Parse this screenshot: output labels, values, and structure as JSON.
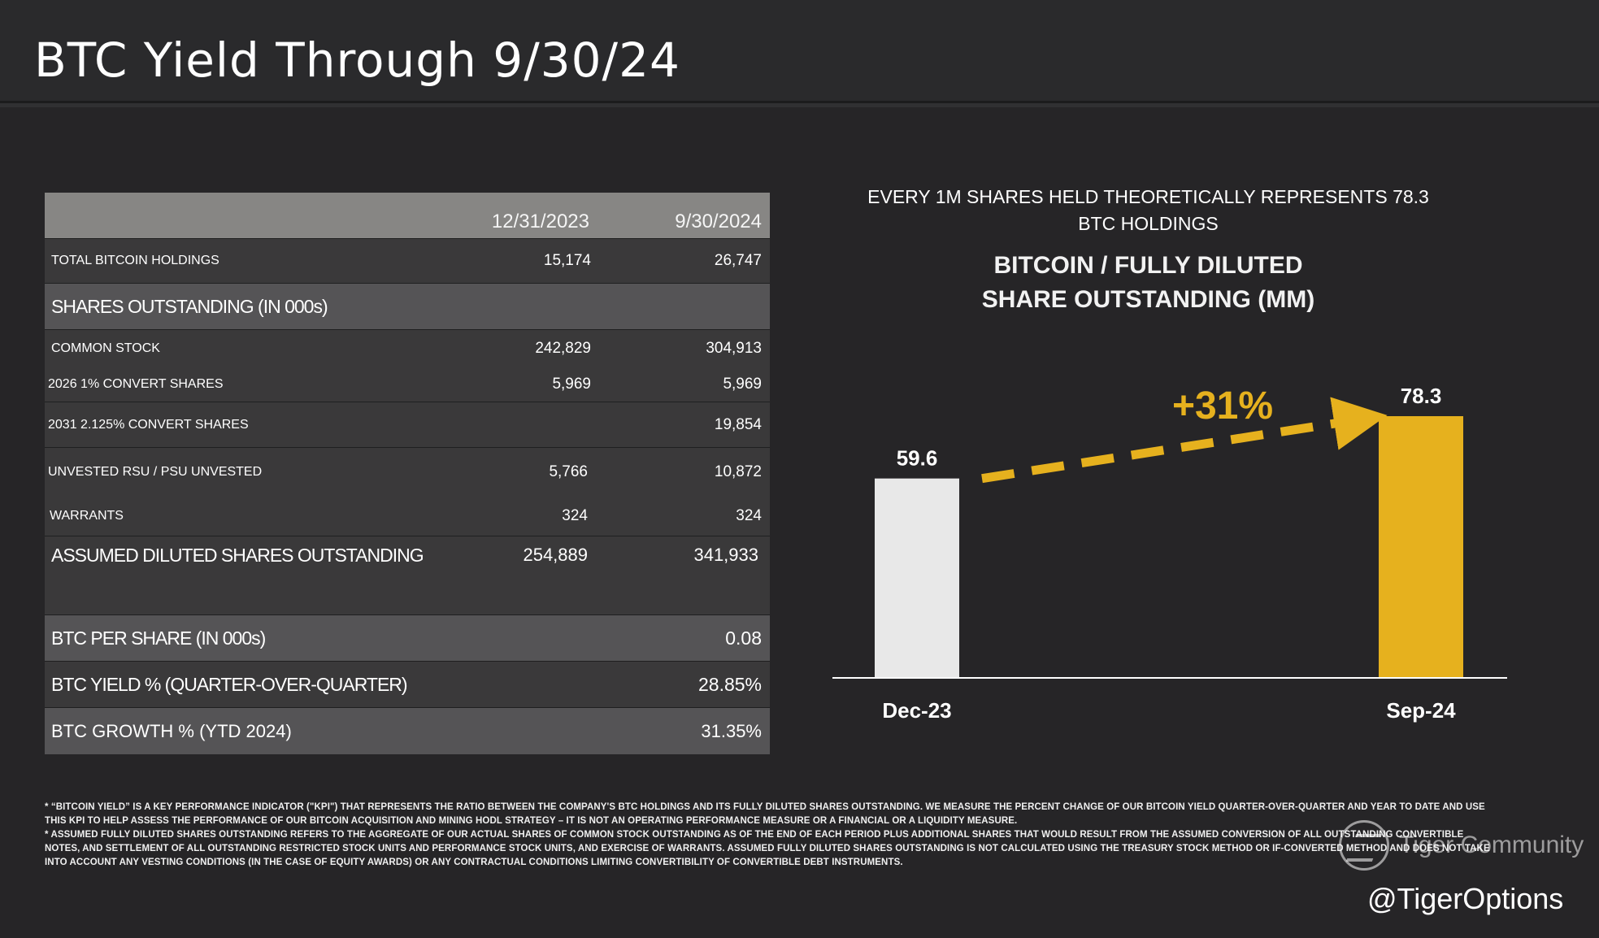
{
  "page": {
    "title": "BTC Yield Through 9/30/24",
    "handle": "@TigerOptions",
    "watermark": "Tiger Community"
  },
  "table": {
    "headers": [
      "",
      "12/31/2023",
      "9/30/2024"
    ],
    "rows": [
      {
        "label": "TOTAL BITCOIN HOLDINGS",
        "v1": "15,174",
        "v2": "26,747"
      },
      {
        "label": "SHARES OUTSTANDING (IN  000s)",
        "v1": "",
        "v2": ""
      },
      {
        "label": "COMMON STOCK",
        "v1": "242,829",
        "v2": "304,913"
      },
      {
        "label": "2026 1% CONVERT SHARES",
        "v1": "5,969",
        "v2": "5,969"
      },
      {
        "label": "2031 2.125% CONVERT SHARES",
        "v1": "",
        "v2": "19,854"
      },
      {
        "label": "UNVESTED RSU / PSU UNVESTED",
        "v1": "5,766",
        "v2": "10,872"
      },
      {
        "label": "WARRANTS",
        "v1": "324",
        "v2": "324"
      },
      {
        "label": "ASSUMED DILUTED SHARES OUTSTANDING",
        "v1": "254,889",
        "v2": "341,933"
      },
      {
        "label": "BTC PER SHARE (IN  000s)",
        "v1": "",
        "v2": "0.08"
      },
      {
        "label": "BTC YIELD % (QUARTER-OVER-QUARTER)",
        "v1": "",
        "v2": "28.85%"
      },
      {
        "label": "BTC GROWTH % (YTD 2024)",
        "v1": "",
        "v2": "31.35%"
      }
    ]
  },
  "chart_data": {
    "type": "bar",
    "subtitle": "EVERY 1M SHARES HELD THEORETICALLY REPRESENTS 78.3 BTC HOLDINGS",
    "subtitle_line1": "EVERY 1M SHARES HELD THEORETICALLY REPRESENTS 78.3",
    "subtitle_line2": "BTC HOLDINGS",
    "title_line1": "BITCOIN / FULLY DILUTED",
    "title_line2": "SHARE OUTSTANDING (MM)",
    "categories": [
      "Dec-23",
      "Sep-24"
    ],
    "values": [
      59.6,
      78.3
    ],
    "value_labels": [
      "59.6",
      "78.3"
    ],
    "bar_colors": [
      "#e8e8e8",
      "#e6b11e"
    ],
    "ylim": [
      0,
      78.3
    ],
    "annotation": "+31%",
    "annotation_color": "#e6b11e",
    "grid": false
  },
  "footnote": {
    "line1": "* “BITCOIN YIELD” IS A KEY PERFORMANCE INDICATOR (\"KPI\") THAT REPRESENTS THE RATIO BETWEEN THE COMPANY'S BTC HOLDINGS AND ITS FULLY DILUTED SHARES OUTSTANDING. WE MEASURE THE PERCENT CHANGE OF OUR BITCOIN YIELD QUARTER-OVER-QUARTER AND YEAR TO DATE AND USE THIS KPI TO HELP ASSESS THE PERFORMANCE OF OUR BITCOIN ACQUISITION AND MINING HODL STRATEGY – IT IS NOT AN OPERATING PERFORMANCE MEASURE OR A FINANCIAL OR A LIQUIDITY MEASURE.",
    "line2": "* ASSUMED FULLY DILUTED SHARES OUTSTANDING REFERS TO THE AGGREGATE OF OUR ACTUAL SHARES OF COMMON STOCK OUTSTANDING AS OF THE END OF EACH PERIOD PLUS ADDITIONAL SHARES THAT WOULD RESULT FROM THE ASSUMED CONVERSION OF ALL OUTSTANDING CONVERTIBLE NOTES, AND SETTLEMENT OF ALL OUTSTANDING RESTRICTED STOCK UNITS AND PERFORMANCE STOCK UNITS, AND EXERCISE OF WARRANTS. ASSUMED FULLY DILUTED SHARES OUTSTANDING IS NOT CALCULATED USING THE TREASURY STOCK METHOD OR IF-CONVERTED METHOD AND DOES NOT TAKE INTO ACCOUNT ANY VESTING CONDITIONS (IN THE CASE OF EQUITY AWARDS) OR ANY CONTRACTUAL CONDITIONS LIMITING CONVERTIBILITY OF CONVERTIBLE DEBT INSTRUMENTS."
  }
}
